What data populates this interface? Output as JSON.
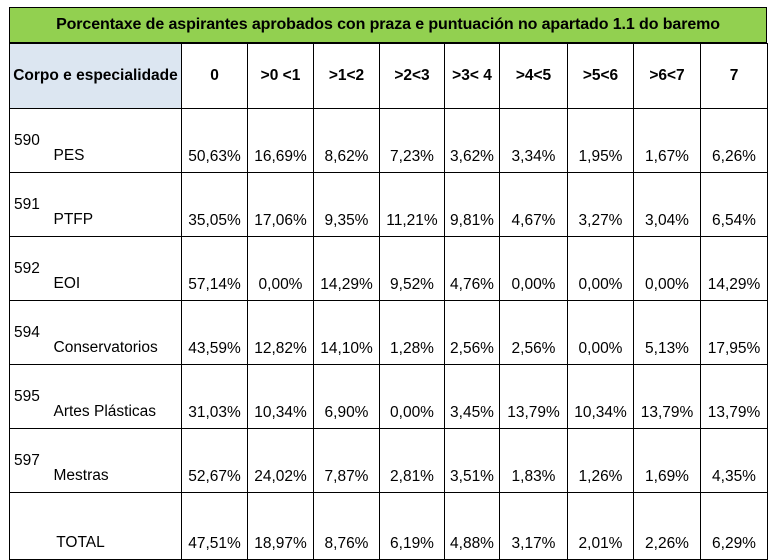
{
  "title": "Porcentaxe de aspirantes aprobados con praza e puntuación no apartado 1.1 do baremo",
  "headers": {
    "corpo": "Corpo e especialidade",
    "cols": [
      "0",
      ">0 <1",
      ">1<2",
      ">2<3",
      ">3< 4",
      ">4<5",
      ">5<6",
      ">6<7",
      "7"
    ]
  },
  "rows": [
    {
      "code": "590",
      "name": "PES",
      "values": [
        "50,63%",
        "16,69%",
        "8,62%",
        "7,23%",
        "3,62%",
        "3,34%",
        "1,95%",
        "1,67%",
        "6,26%"
      ]
    },
    {
      "code": "591",
      "name": "PTFP",
      "values": [
        "35,05%",
        "17,06%",
        "9,35%",
        "11,21%",
        "9,81%",
        "4,67%",
        "3,27%",
        "3,04%",
        "6,54%"
      ]
    },
    {
      "code": "592",
      "name": "EOI",
      "values": [
        "57,14%",
        "0,00%",
        "14,29%",
        "9,52%",
        "4,76%",
        "0,00%",
        "0,00%",
        "0,00%",
        "14,29%"
      ]
    },
    {
      "code": "594",
      "name": "Conservatorios",
      "values": [
        "43,59%",
        "12,82%",
        "14,10%",
        "1,28%",
        "2,56%",
        "2,56%",
        "0,00%",
        "5,13%",
        "17,95%"
      ]
    },
    {
      "code": "595",
      "name": "Artes Plásticas",
      "values": [
        "31,03%",
        "10,34%",
        "6,90%",
        "0,00%",
        "3,45%",
        "13,79%",
        "10,34%",
        "13,79%",
        "13,79%"
      ]
    },
    {
      "code": "597",
      "name": "Mestras",
      "values": [
        "52,67%",
        "24,02%",
        "7,87%",
        "2,81%",
        "3,51%",
        "1,83%",
        "1,26%",
        "1,69%",
        "4,35%"
      ]
    }
  ],
  "total": {
    "label": "TOTAL",
    "values": [
      "47,51%",
      "18,97%",
      "8,76%",
      "6,19%",
      "4,88%",
      "3,17%",
      "2,01%",
      "2,26%",
      "6,29%"
    ]
  }
}
